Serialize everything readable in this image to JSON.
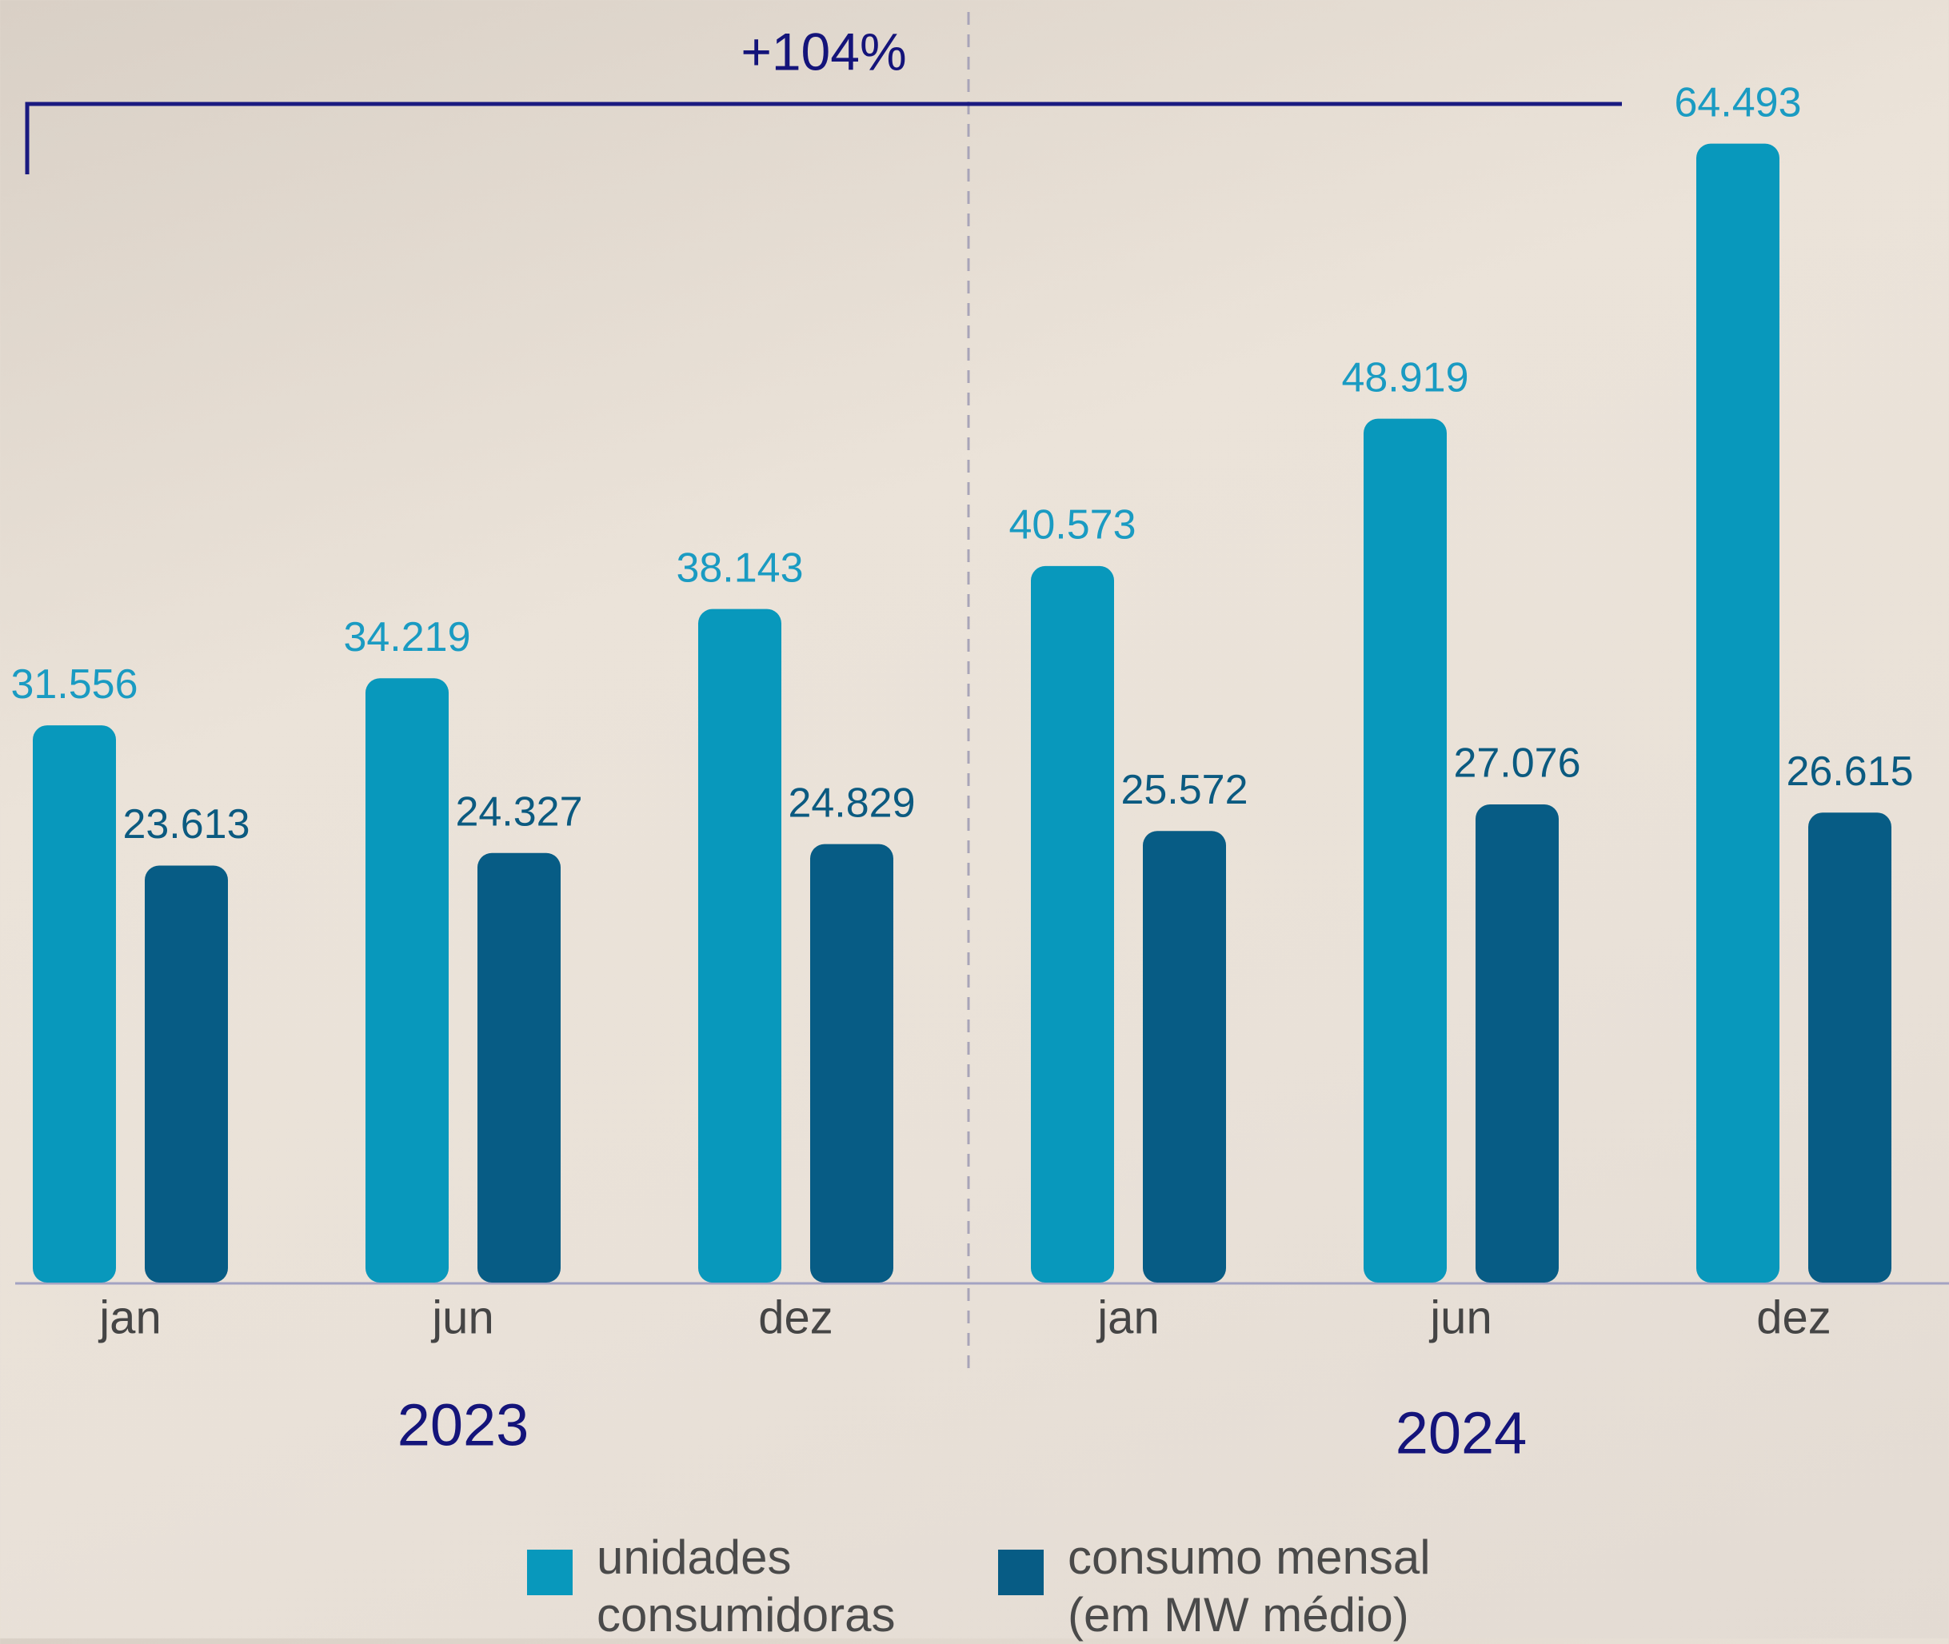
{
  "chart_data": {
    "type": "bar",
    "annotation": "+104%",
    "categories": [
      "jan",
      "jun",
      "dez",
      "jan",
      "jun",
      "dez"
    ],
    "groups": [
      {
        "label": "2023",
        "categories": [
          0,
          1,
          2
        ]
      },
      {
        "label": "2024",
        "categories": [
          3,
          4,
          5
        ]
      }
    ],
    "series": [
      {
        "name": "unidades consumidoras",
        "color": "#0898bc",
        "label_color": "#1a9bc2",
        "values": [
          31556,
          34219,
          38143,
          40573,
          48919,
          64493
        ],
        "value_labels": [
          "31.556",
          "34.219",
          "38.143",
          "40.573",
          "48.919",
          "64.493"
        ]
      },
      {
        "name": "consumo mensal (em MW médio)",
        "color": "#075c85",
        "label_color": "#0b5a80",
        "values": [
          23613,
          24327,
          24829,
          25572,
          27076,
          26615
        ],
        "value_labels": [
          "23.613",
          "24.327",
          "24.829",
          "25.572",
          "27.076",
          "26.615"
        ]
      }
    ],
    "ylim": [
      0,
      70000
    ]
  }
}
